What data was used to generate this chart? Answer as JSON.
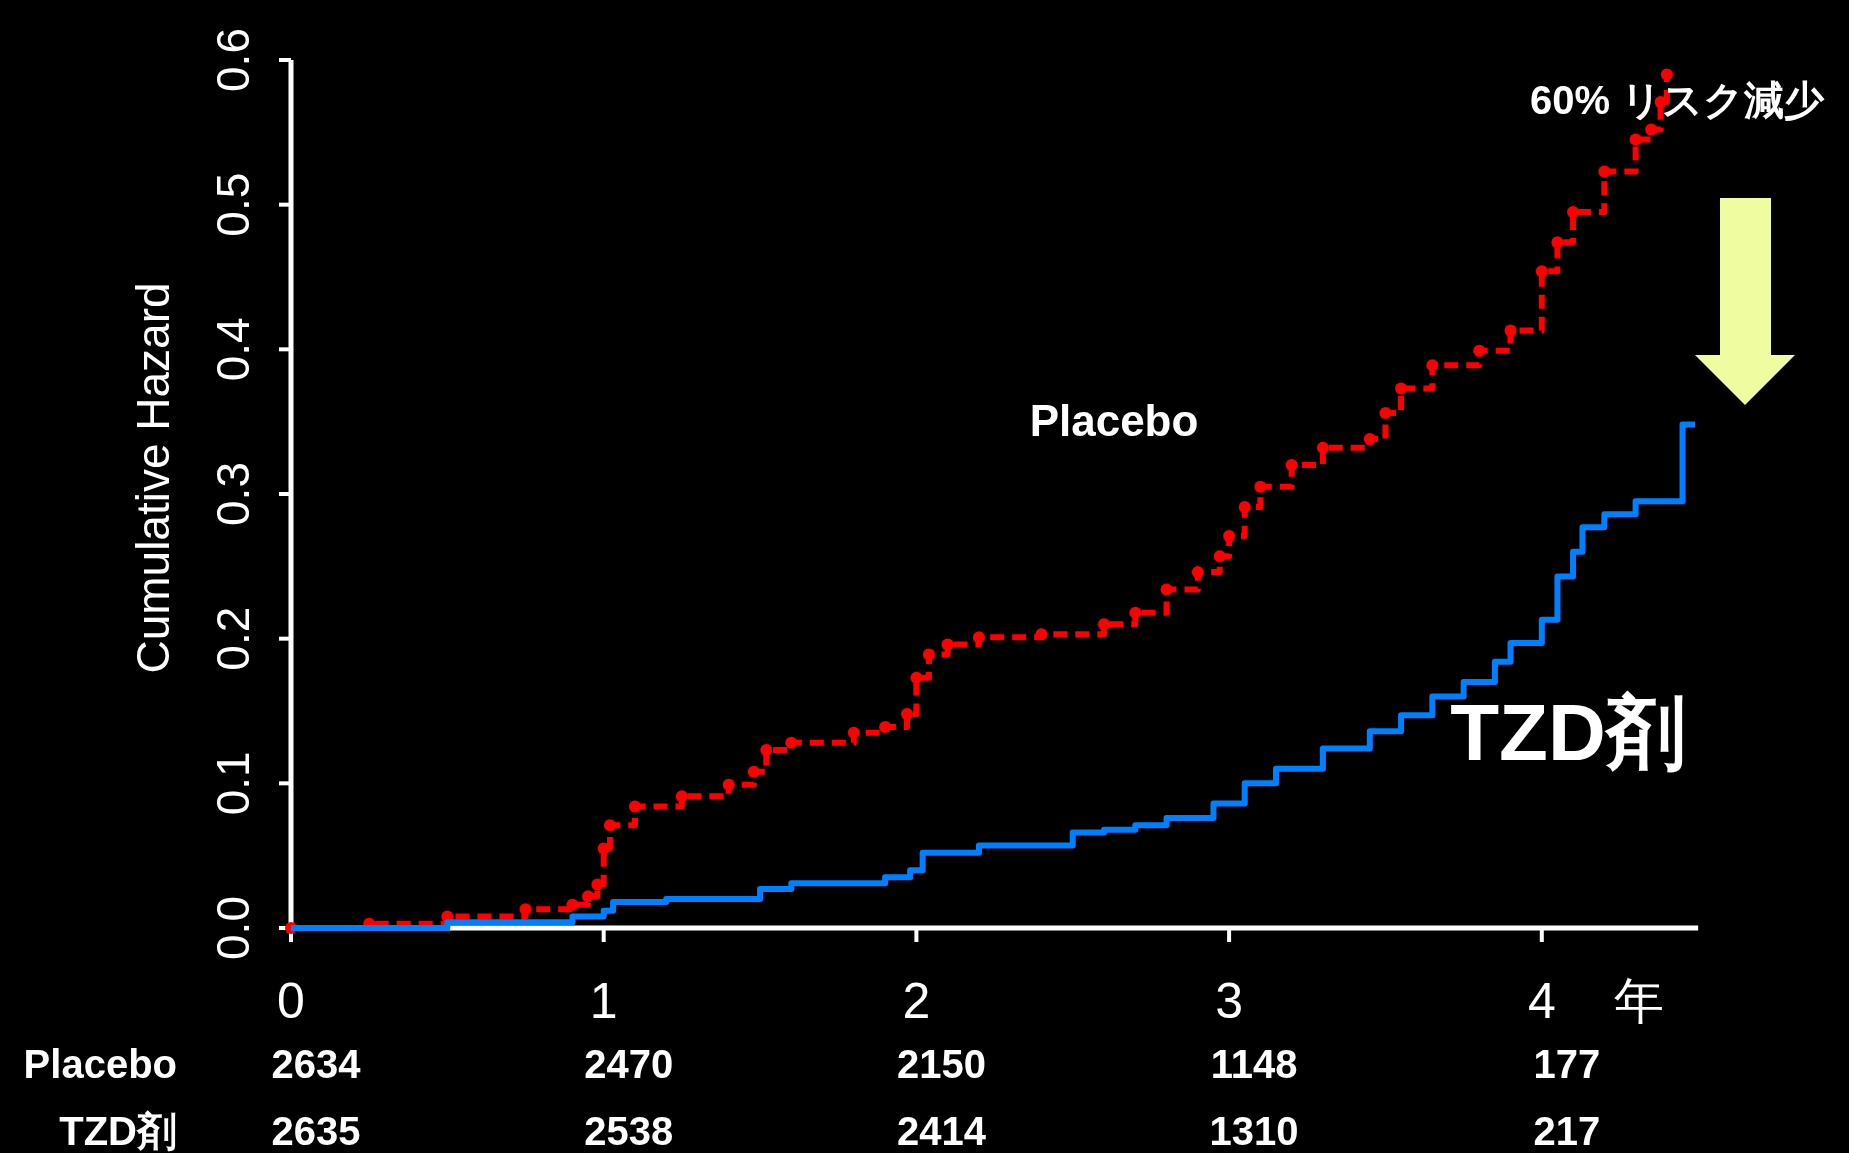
{
  "chart_data": {
    "type": "step",
    "ylabel": "Cumulative Hazard",
    "xlabel": "年",
    "xlim": [
      0,
      4.5
    ],
    "xticks": [
      0,
      1,
      2,
      3,
      4
    ],
    "ylim": [
      0,
      0.6
    ],
    "yticks": [
      {
        "value": 0,
        "label": "0.0"
      },
      {
        "value": 0.1,
        "label": "0.1"
      },
      {
        "value": 0.2,
        "label": "0.2"
      },
      {
        "value": 0.3,
        "label": "0.3"
      },
      {
        "value": 0.4,
        "label": "0.4"
      },
      {
        "value": 0.5,
        "label": "0.5"
      },
      {
        "value": 0.6,
        "label": "0.6"
      }
    ],
    "series": [
      {
        "name": "Placebo",
        "color": "#ff0000",
        "line_style": "dashed",
        "marker": "circle",
        "x": [
          0,
          0.25,
          0.5,
          0.75,
          0.9,
          0.95,
          0.98,
          1.0,
          1.02,
          1.1,
          1.25,
          1.4,
          1.48,
          1.52,
          1.6,
          1.8,
          1.9,
          1.97,
          2.0,
          2.04,
          2.1,
          2.2,
          2.4,
          2.6,
          2.7,
          2.8,
          2.9,
          2.97,
          3.0,
          3.05,
          3.1,
          3.2,
          3.3,
          3.45,
          3.5,
          3.55,
          3.65,
          3.8,
          3.9,
          4.0,
          4.05,
          4.1,
          4.2,
          4.3,
          4.35,
          4.38,
          4.4
        ],
        "values": [
          0,
          0.003,
          0.008,
          0.013,
          0.016,
          0.022,
          0.03,
          0.055,
          0.071,
          0.084,
          0.091,
          0.099,
          0.108,
          0.123,
          0.128,
          0.135,
          0.139,
          0.148,
          0.173,
          0.189,
          0.196,
          0.201,
          0.203,
          0.21,
          0.218,
          0.234,
          0.246,
          0.257,
          0.271,
          0.291,
          0.305,
          0.32,
          0.332,
          0.338,
          0.356,
          0.373,
          0.389,
          0.399,
          0.413,
          0.454,
          0.474,
          0.495,
          0.523,
          0.545,
          0.552,
          0.571,
          0.59
        ]
      },
      {
        "name": "TZD剤",
        "color": "#0080ff",
        "line_style": "solid",
        "x": [
          0,
          0.5,
          0.9,
          1.0,
          1.03,
          1.2,
          1.5,
          1.6,
          1.9,
          1.98,
          2.02,
          2.2,
          2.5,
          2.6,
          2.7,
          2.8,
          2.95,
          3.05,
          3.15,
          3.3,
          3.45,
          3.55,
          3.65,
          3.75,
          3.85,
          3.9,
          4.0,
          4.05,
          4.1,
          4.13,
          4.2,
          4.3,
          4.45,
          4.49
        ],
        "values": [
          0,
          0.004,
          0.008,
          0.012,
          0.018,
          0.02,
          0.027,
          0.031,
          0.035,
          0.04,
          0.052,
          0.057,
          0.066,
          0.068,
          0.071,
          0.076,
          0.086,
          0.1,
          0.11,
          0.124,
          0.136,
          0.147,
          0.16,
          0.17,
          0.184,
          0.197,
          0.213,
          0.243,
          0.26,
          0.277,
          0.286,
          0.295,
          0.348,
          0.348
        ]
      }
    ],
    "annotations": [
      "60% リスク減少",
      "Placebo",
      "2634",
      "2470",
      "2150",
      "1148",
      "177",
      "TZD剤",
      "2635",
      "2538",
      "2414",
      "1310",
      "217"
    ]
  }
}
